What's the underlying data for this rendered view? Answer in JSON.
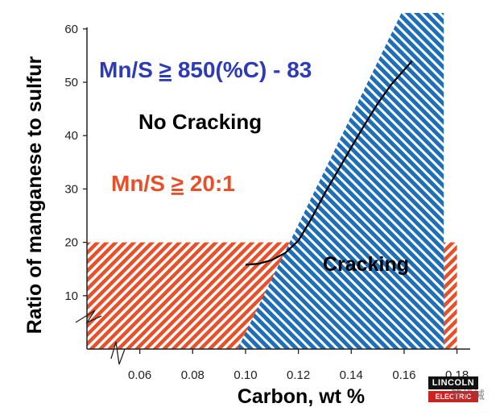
{
  "chart_data": {
    "type": "area",
    "xlabel": "Carbon, wt %",
    "ylabel": "Ratio of manganese to sulfur",
    "xlim": [
      0.04,
      0.185
    ],
    "ylim": [
      0,
      63
    ],
    "x_ticks": [
      0.06,
      0.08,
      0.1,
      0.12,
      0.14,
      0.16,
      0.18
    ],
    "x_tick_labels": [
      "0.06",
      "0.08",
      "0.10",
      "0.12",
      "0.14",
      "0.16",
      "0.18"
    ],
    "y_ticks": [
      10,
      20,
      30,
      40,
      50,
      60
    ],
    "y_tick_labels": [
      "10",
      "20",
      "30",
      "40",
      "50",
      "60"
    ],
    "regions": [
      {
        "name": "Mn/S ≥ 20:1",
        "color": "#e8502a",
        "pattern": "diagonal-hatch",
        "x": [
          0.04,
          0.18
        ],
        "y": [
          0,
          20
        ]
      },
      {
        "name": "Cracking",
        "color": "#1f6fb8",
        "pattern": "diagonal-hatch",
        "polygon": [
          [
            0.097,
            0
          ],
          [
            0.175,
            0
          ],
          [
            0.175,
            63
          ],
          [
            0.159,
            63
          ]
        ]
      }
    ],
    "curve": {
      "color": "#000000",
      "x": [
        0.1,
        0.105,
        0.11,
        0.115,
        0.12,
        0.125,
        0.13,
        0.135,
        0.14,
        0.145,
        0.15,
        0.155,
        0.16,
        0.163
      ],
      "y": [
        15.8,
        16.0,
        16.7,
        18.0,
        20.3,
        24.5,
        29.2,
        33.5,
        37.8,
        42.0,
        46.0,
        49.5,
        52.3,
        54.0
      ]
    }
  },
  "annotations": {
    "equation": {
      "prefix": "Mn/S ",
      "symbol": "≥",
      "suffix": " 850(%C) - 83",
      "color": "#2e3bb8"
    },
    "no_cracking": {
      "text": "No Cracking",
      "color": "#000000"
    },
    "ratio": {
      "prefix": "Mn/S ",
      "symbol": "≥",
      "suffix": " 20:1",
      "color": "#e8502a"
    },
    "cracking": {
      "text": "Cracking",
      "color": "#000000"
    }
  },
  "logo": {
    "line1": "LINCOLN",
    "line2": "ELECTRIC"
  },
  "watermark": {
    "text": "管机械"
  }
}
